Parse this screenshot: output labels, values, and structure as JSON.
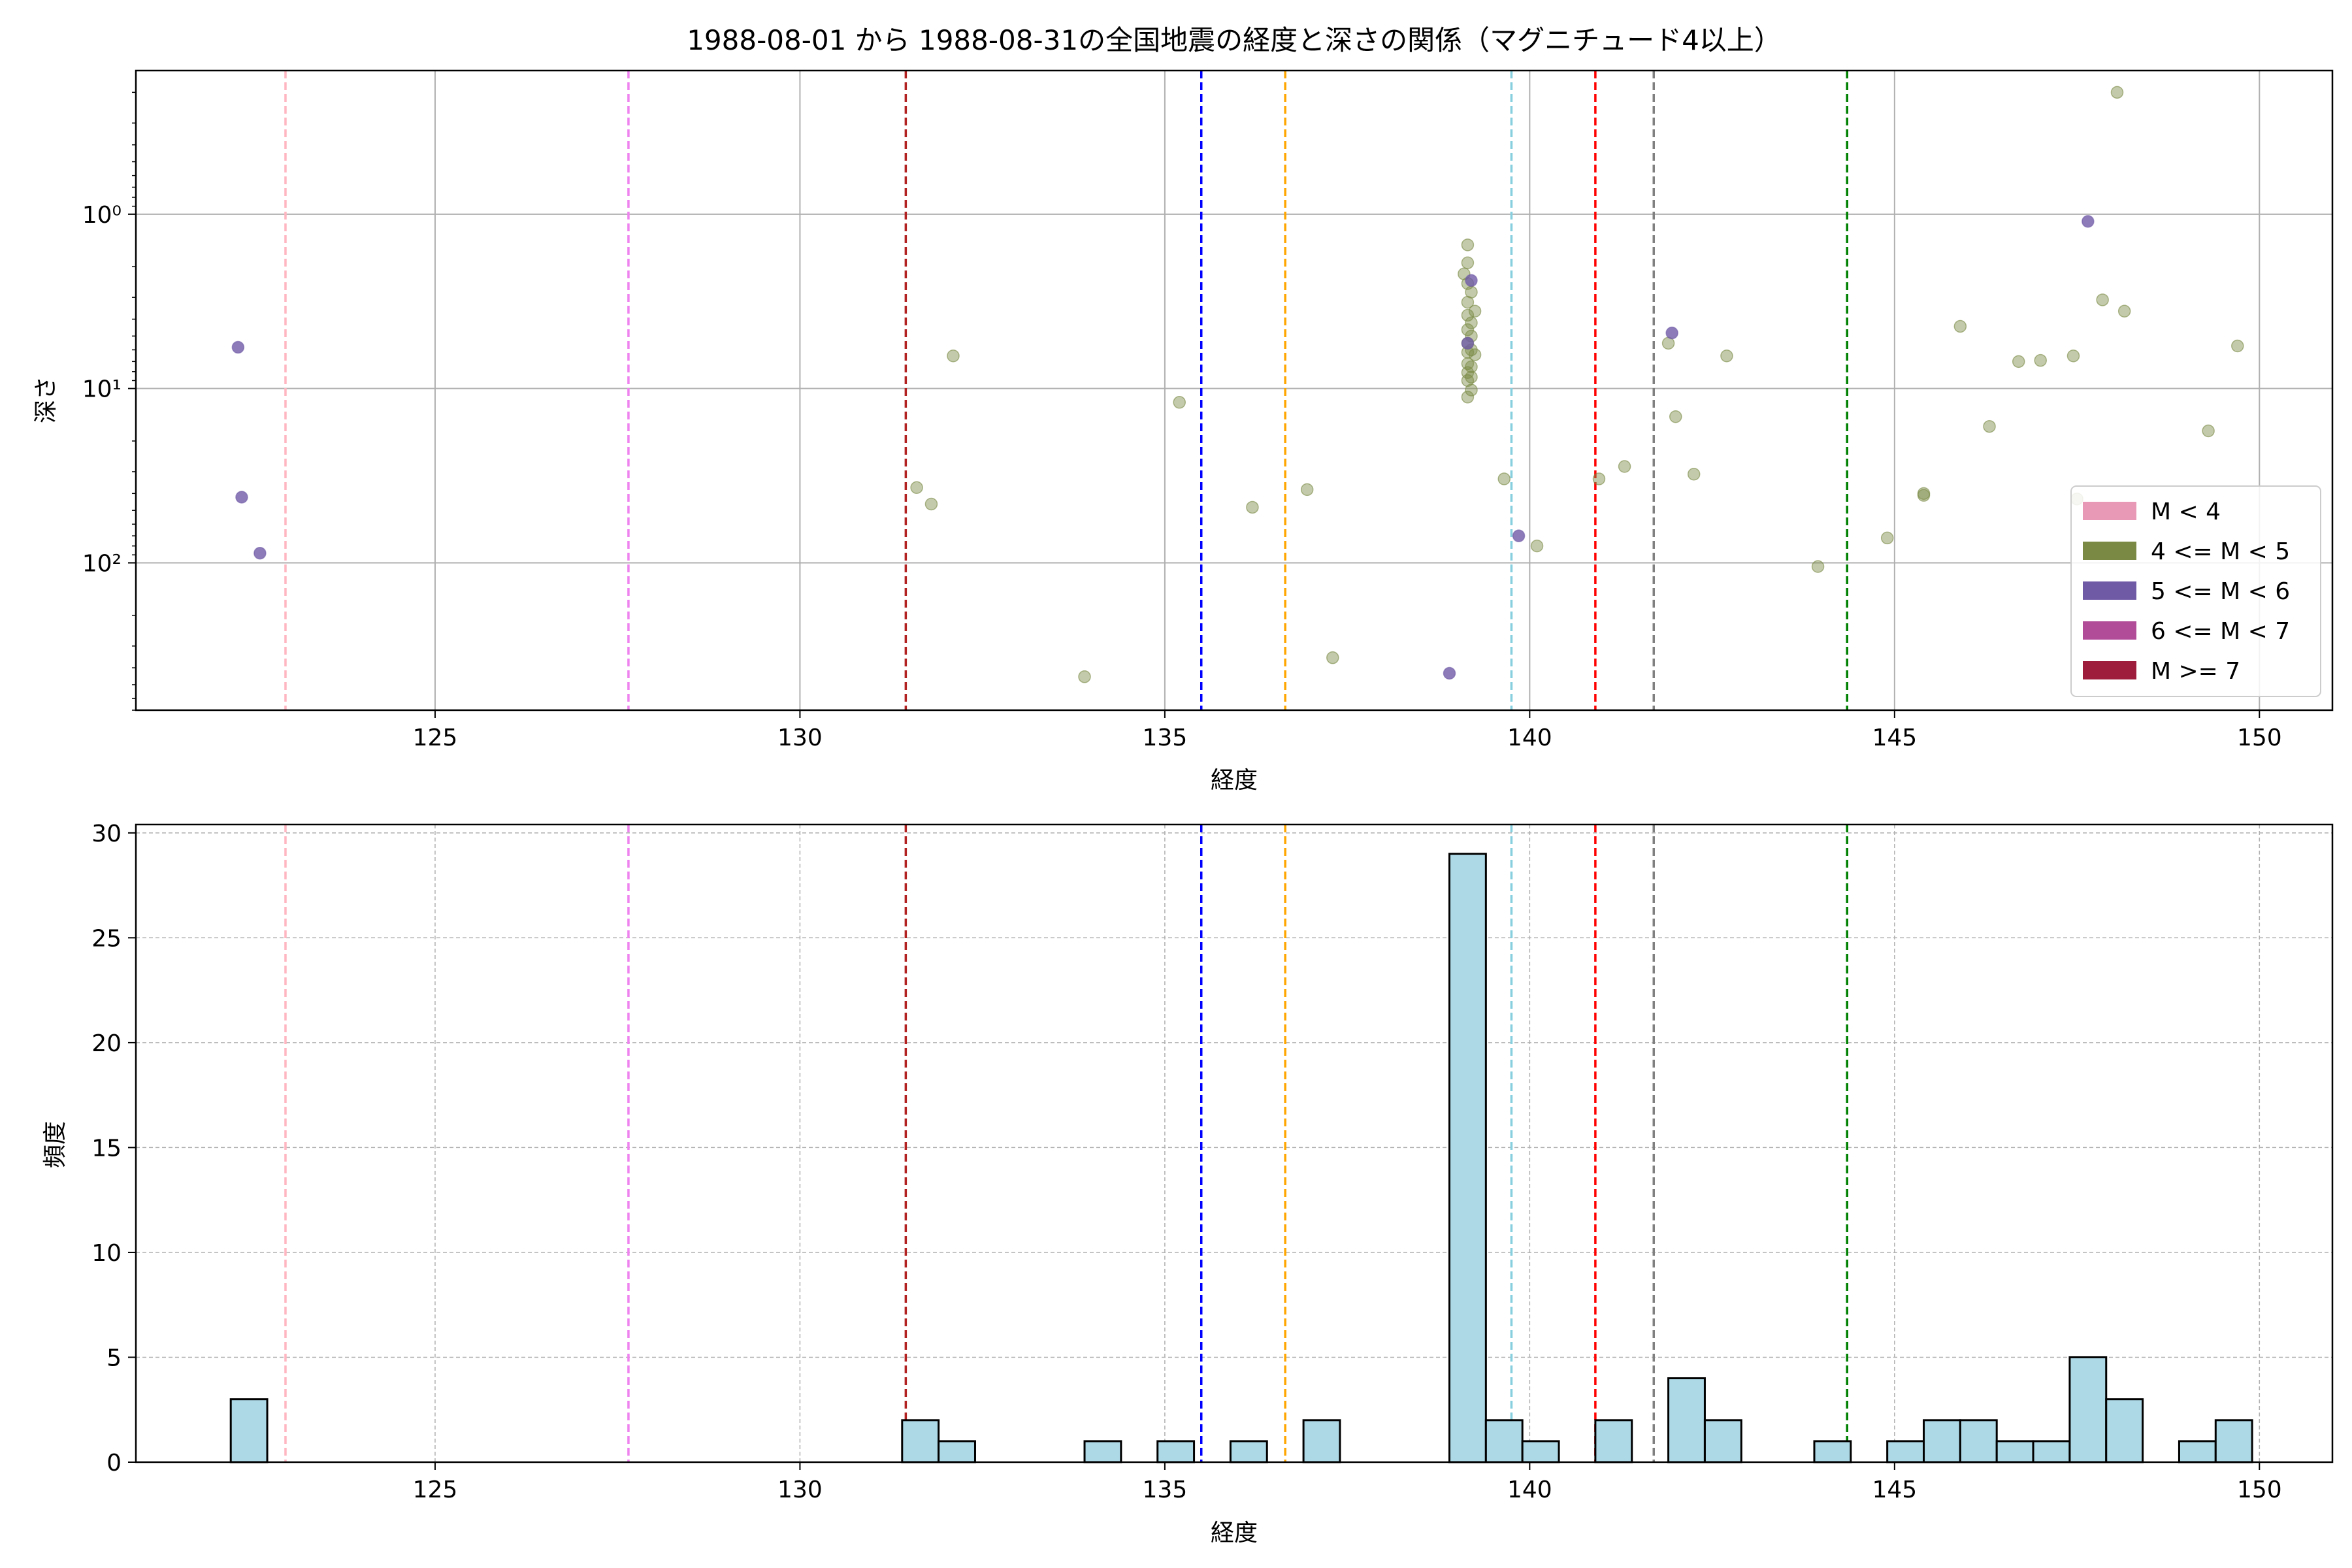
{
  "chart_data": [
    {
      "type": "scatter",
      "title": "1988-08-01 から 1988-08-31の全国地震の経度と深さの関係（マグニチュード4以上）",
      "xlabel": "経度",
      "ylabel": "深さ",
      "xlim": [
        120.9,
        151.0
      ],
      "ylim": [
        700,
        0.15
      ],
      "yscale": "log",
      "y_inverted": true,
      "grid": true,
      "x_ticks": [
        125,
        130,
        135,
        140,
        145,
        150
      ],
      "y_ticks": [
        {
          "value": 1,
          "label": "10⁰"
        },
        {
          "value": 10,
          "label": "10¹"
        },
        {
          "value": 100,
          "label": "10²"
        }
      ],
      "legend": {
        "position": "bottom-right",
        "entries": [
          {
            "label": "M < 4",
            "color": "#e899b6"
          },
          {
            "label": "4 <= M < 5",
            "color": "#7a8a45"
          },
          {
            "label": "5 <= M < 6",
            "color": "#6f5aa6"
          },
          {
            "label": "6 <= M < 7",
            "color": "#b04c98"
          },
          {
            "label": "M >= 7",
            "color": "#9e1c3c"
          }
        ]
      },
      "vlines": [
        {
          "x": 122.95,
          "color": "#ffb6c1"
        },
        {
          "x": 127.65,
          "color": "#ee82ee"
        },
        {
          "x": 131.45,
          "color": "#b22222"
        },
        {
          "x": 135.5,
          "color": "#0000ff"
        },
        {
          "x": 136.65,
          "color": "#ffa500"
        },
        {
          "x": 139.75,
          "color": "#87cedf"
        },
        {
          "x": 140.9,
          "color": "#ff0000"
        },
        {
          "x": 141.7,
          "color": "#808080"
        },
        {
          "x": 144.35,
          "color": "#008000"
        }
      ],
      "series": [
        {
          "name": "4 <= M < 5",
          "color": "#7a8a45",
          "points": [
            [
              131.6,
              37
            ],
            [
              131.8,
              46
            ],
            [
              132.1,
              6.5
            ],
            [
              133.9,
              450
            ],
            [
              135.2,
              12
            ],
            [
              136.2,
              48
            ],
            [
              136.95,
              38
            ],
            [
              137.3,
              350
            ],
            [
              139.1,
              2.2
            ],
            [
              139.15,
              1.5
            ],
            [
              139.15,
              1.9
            ],
            [
              139.15,
              2.5
            ],
            [
              139.15,
              3.2
            ],
            [
              139.15,
              3.8
            ],
            [
              139.15,
              4.6
            ],
            [
              139.15,
              5.5
            ],
            [
              139.15,
              6.2
            ],
            [
              139.15,
              7.2
            ],
            [
              139.15,
              8.1
            ],
            [
              139.15,
              9.0
            ],
            [
              139.15,
              11.2
            ],
            [
              139.2,
              2.8
            ],
            [
              139.2,
              4.2
            ],
            [
              139.2,
              5.0
            ],
            [
              139.2,
              6.0
            ],
            [
              139.2,
              7.5
            ],
            [
              139.2,
              8.6
            ],
            [
              139.2,
              10.2
            ],
            [
              139.25,
              3.6
            ],
            [
              139.25,
              6.4
            ],
            [
              139.65,
              33
            ],
            [
              140.1,
              80
            ],
            [
              140.95,
              33
            ],
            [
              141.3,
              28
            ],
            [
              141.9,
              5.5
            ],
            [
              142.0,
              14.5
            ],
            [
              142.25,
              31
            ],
            [
              142.7,
              6.5
            ],
            [
              143.95,
              105
            ],
            [
              144.9,
              72
            ],
            [
              145.4,
              41
            ],
            [
              145.4,
              40
            ],
            [
              145.9,
              4.4
            ],
            [
              146.3,
              16.5
            ],
            [
              146.7,
              7.0
            ],
            [
              147.0,
              6.9
            ],
            [
              147.45,
              6.5
            ],
            [
              147.85,
              3.1
            ],
            [
              148.05,
              0.2
            ],
            [
              148.15,
              3.6
            ],
            [
              149.3,
              17.5
            ],
            [
              149.7,
              5.7
            ],
            [
              147.5,
              43
            ]
          ]
        },
        {
          "name": "5 <= M < 6",
          "color": "#6f5aa6",
          "points": [
            [
              122.3,
              5.8
            ],
            [
              122.35,
              42
            ],
            [
              122.6,
              88
            ],
            [
              138.9,
              430
            ],
            [
              139.15,
              5.5
            ],
            [
              139.2,
              2.4
            ],
            [
              139.85,
              70
            ],
            [
              141.95,
              4.8
            ],
            [
              147.65,
              1.1
            ]
          ]
        }
      ]
    },
    {
      "type": "bar",
      "xlabel": "経度",
      "ylabel": "頻度",
      "xlim": [
        120.9,
        151.0
      ],
      "ylim": [
        0,
        30.4
      ],
      "grid": true,
      "x_ticks": [
        125,
        130,
        135,
        140,
        145,
        150
      ],
      "y_ticks": [
        0,
        5,
        10,
        15,
        20,
        25,
        30
      ],
      "bar_color": "#add8e6",
      "bins": [
        {
          "x0": 122.2,
          "x1": 122.7,
          "count": 3
        },
        {
          "x0": 131.4,
          "x1": 131.9,
          "count": 2
        },
        {
          "x0": 131.9,
          "x1": 132.4,
          "count": 1
        },
        {
          "x0": 133.9,
          "x1": 134.4,
          "count": 1
        },
        {
          "x0": 134.9,
          "x1": 135.4,
          "count": 1
        },
        {
          "x0": 135.9,
          "x1": 136.4,
          "count": 1
        },
        {
          "x0": 136.9,
          "x1": 137.4,
          "count": 2
        },
        {
          "x0": 138.9,
          "x1": 139.4,
          "count": 29
        },
        {
          "x0": 139.4,
          "x1": 139.9,
          "count": 2
        },
        {
          "x0": 139.9,
          "x1": 140.4,
          "count": 1
        },
        {
          "x0": 140.9,
          "x1": 141.4,
          "count": 2
        },
        {
          "x0": 141.9,
          "x1": 142.4,
          "count": 4
        },
        {
          "x0": 142.4,
          "x1": 142.9,
          "count": 2
        },
        {
          "x0": 143.9,
          "x1": 144.4,
          "count": 1
        },
        {
          "x0": 144.9,
          "x1": 145.4,
          "count": 1
        },
        {
          "x0": 145.4,
          "x1": 145.9,
          "count": 2
        },
        {
          "x0": 145.9,
          "x1": 146.4,
          "count": 2
        },
        {
          "x0": 146.4,
          "x1": 146.9,
          "count": 1
        },
        {
          "x0": 146.9,
          "x1": 147.4,
          "count": 1
        },
        {
          "x0": 147.4,
          "x1": 147.9,
          "count": 5
        },
        {
          "x0": 147.9,
          "x1": 148.4,
          "count": 3
        },
        {
          "x0": 148.9,
          "x1": 149.4,
          "count": 1
        },
        {
          "x0": 149.4,
          "x1": 149.9,
          "count": 2
        }
      ],
      "vlines": [
        {
          "x": 122.95,
          "color": "#ffb6c1"
        },
        {
          "x": 127.65,
          "color": "#ee82ee"
        },
        {
          "x": 131.45,
          "color": "#b22222"
        },
        {
          "x": 135.5,
          "color": "#0000ff"
        },
        {
          "x": 136.65,
          "color": "#ffa500"
        },
        {
          "x": 139.75,
          "color": "#87cedf"
        },
        {
          "x": 140.9,
          "color": "#ff0000"
        },
        {
          "x": 141.7,
          "color": "#808080"
        },
        {
          "x": 144.35,
          "color": "#008000"
        }
      ]
    }
  ]
}
